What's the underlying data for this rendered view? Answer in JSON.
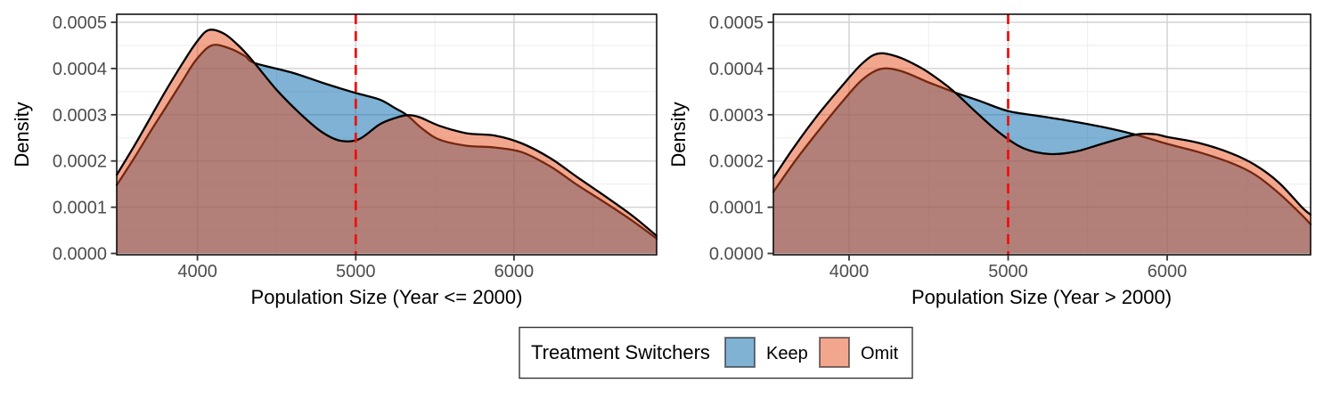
{
  "style": {
    "background": "#FFFFFF",
    "panel_border_color": "#000000",
    "grid_major_color": "#D4D4D4",
    "grid_minor_color": "#EBEBEB",
    "axis_tick_color": "#333333",
    "tick_label_color": "#4D4D4D",
    "axis_title_color": "#000000",
    "curve_stroke_color": "#000000",
    "keep_fill_base": "#0065A9",
    "omit_fill_base": "#E74D1D",
    "fill_alpha": 0.5,
    "keep_swatch": "#80B2D4",
    "omit_swatch": "#F3A68E",
    "vline_color": "#EE1111"
  },
  "legend": {
    "title": "Treatment Switchers",
    "items": [
      {
        "label": "Keep"
      },
      {
        "label": "Omit"
      }
    ]
  },
  "chart_data": [
    {
      "type": "area",
      "title": "",
      "xlabel": "Population Size (Year <= 2000)",
      "ylabel": "Density",
      "xlim": [
        3490,
        6901
      ],
      "ylim": [
        0,
        0.0005
      ],
      "xticks": [
        4000,
        5000,
        6000
      ],
      "xtick_labels": [
        "4000",
        "5000",
        "6000"
      ],
      "yticks": [
        0,
        0.0001,
        0.0002,
        0.0003,
        0.0004,
        0.0005
      ],
      "ytick_labels": [
        "0.0000",
        "0.0001",
        "0.0002",
        "0.0003",
        "0.0004",
        "0.0005"
      ],
      "x_minor": [
        3500,
        4500,
        5500,
        6500
      ],
      "y_minor": [
        5e-05,
        0.00015,
        0.00025,
        0.00035,
        0.00045
      ],
      "vline_x": 5000,
      "grid": true,
      "legend_position": "bottom",
      "series": [
        {
          "name": "Keep",
          "points": [
            [
              3490,
              0.000148
            ],
            [
              3600,
              0.000206
            ],
            [
              3700,
              0.000262
            ],
            [
              3800,
              0.000316
            ],
            [
              3900,
              0.00037
            ],
            [
              3990,
              0.000418
            ],
            [
              4090,
              0.00045
            ],
            [
              4200,
              0.000444
            ],
            [
              4300,
              0.000427
            ],
            [
              4360,
              0.000412
            ],
            [
              4600,
              0.000391
            ],
            [
              4800,
              0.000368
            ],
            [
              5000,
              0.000347
            ],
            [
              5150,
              0.000333
            ],
            [
              5250,
              0.000314
            ],
            [
              5324,
              0.000299
            ],
            [
              5420,
              0.00027
            ],
            [
              5530,
              0.000246
            ],
            [
              5700,
              0.000233
            ],
            [
              5880,
              0.000229
            ],
            [
              6050,
              0.000219
            ],
            [
              6230,
              0.000188
            ],
            [
              6400,
              0.000148
            ],
            [
              6570,
              0.000111
            ],
            [
              6750,
              7e-05
            ],
            [
              6901,
              3.2e-05
            ]
          ]
        },
        {
          "name": "Omit",
          "points": [
            [
              3490,
              0.00017
            ],
            [
              3600,
              0.000232
            ],
            [
              3700,
              0.000292
            ],
            [
              3800,
              0.000352
            ],
            [
              3900,
              0.000408
            ],
            [
              3990,
              0.000455
            ],
            [
              4070,
              0.000483
            ],
            [
              4170,
              0.000475
            ],
            [
              4270,
              0.000446
            ],
            [
              4360,
              0.000412
            ],
            [
              4500,
              0.000354
            ],
            [
              4650,
              0.000302
            ],
            [
              4780,
              0.000264
            ],
            [
              4900,
              0.000244
            ],
            [
              5020,
              0.000247
            ],
            [
              5150,
              0.000279
            ],
            [
              5250,
              0.000293
            ],
            [
              5324,
              0.000299
            ],
            [
              5400,
              0.000295
            ],
            [
              5530,
              0.000276
            ],
            [
              5700,
              0.00026
            ],
            [
              5880,
              0.000255
            ],
            [
              6050,
              0.000238
            ],
            [
              6230,
              0.000206
            ],
            [
              6400,
              0.000165
            ],
            [
              6570,
              0.000125
            ],
            [
              6750,
              8.1e-05
            ],
            [
              6901,
              3.8e-05
            ]
          ]
        }
      ]
    },
    {
      "type": "area",
      "title": "",
      "xlabel": "Population Size (Year > 2000)",
      "ylabel": "Density",
      "xlim": [
        3524,
        6902
      ],
      "ylim": [
        0,
        0.0005
      ],
      "xticks": [
        4000,
        5000,
        6000
      ],
      "xtick_labels": [
        "4000",
        "5000",
        "6000"
      ],
      "yticks": [
        0,
        0.0001,
        0.0002,
        0.0003,
        0.0004,
        0.0005
      ],
      "ytick_labels": [
        "0.0000",
        "0.0001",
        "0.0002",
        "0.0003",
        "0.0004",
        "0.0005"
      ],
      "x_minor": [
        4500,
        5500,
        6500
      ],
      "y_minor": [
        5e-05,
        0.00015,
        0.00025,
        0.00035,
        0.00045
      ],
      "vline_x": 5000,
      "grid": true,
      "legend_position": "bottom",
      "series": [
        {
          "name": "Keep",
          "points": [
            [
              3524,
              0.000133
            ],
            [
              3650,
              0.000195
            ],
            [
              3800,
              0.000262
            ],
            [
              3950,
              0.000325
            ],
            [
              4080,
              0.000375
            ],
            [
              4200,
              0.000399
            ],
            [
              4330,
              0.000394
            ],
            [
              4500,
              0.00037
            ],
            [
              4667,
              0.000348
            ],
            [
              4820,
              0.00033
            ],
            [
              5000,
              0.000308
            ],
            [
              5200,
              0.000297
            ],
            [
              5400,
              0.000286
            ],
            [
              5600,
              0.000273
            ],
            [
              5800,
              0.000257
            ],
            [
              6000,
              0.000237
            ],
            [
              6200,
              0.000219
            ],
            [
              6400,
              0.000196
            ],
            [
              6550,
              0.000171
            ],
            [
              6700,
              0.000131
            ],
            [
              6850,
              8.2e-05
            ],
            [
              6902,
              6.3e-05
            ]
          ]
        },
        {
          "name": "Omit",
          "points": [
            [
              3524,
              0.000163
            ],
            [
              3650,
              0.000228
            ],
            [
              3800,
              0.000298
            ],
            [
              3950,
              0.00036
            ],
            [
              4080,
              0.00041
            ],
            [
              4180,
              0.000432
            ],
            [
              4300,
              0.000426
            ],
            [
              4450,
              0.000402
            ],
            [
              4580,
              0.000372
            ],
            [
              4667,
              0.000348
            ],
            [
              4800,
              0.000305
            ],
            [
              4950,
              0.00026
            ],
            [
              5100,
              0.000227
            ],
            [
              5260,
              0.000215
            ],
            [
              5420,
              0.00022
            ],
            [
              5600,
              0.000238
            ],
            [
              5800,
              0.000257
            ],
            [
              5920,
              0.000258
            ],
            [
              6000,
              0.000252
            ],
            [
              6200,
              0.000239
            ],
            [
              6400,
              0.000217
            ],
            [
              6550,
              0.000192
            ],
            [
              6700,
              0.000154
            ],
            [
              6850,
              9.9e-05
            ],
            [
              6902,
              8.4e-05
            ]
          ]
        }
      ]
    }
  ]
}
